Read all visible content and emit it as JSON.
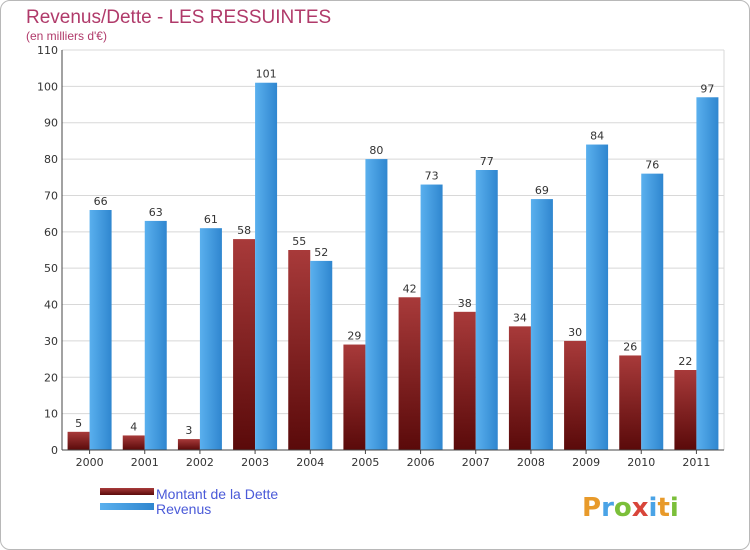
{
  "chart_data": {
    "type": "bar",
    "title": "Revenus/Dette - LES RESSUINTES",
    "subtitle": "(en milliers d'€)",
    "categories": [
      "2000",
      "2001",
      "2002",
      "2003",
      "2004",
      "2005",
      "2006",
      "2007",
      "2008",
      "2009",
      "2010",
      "2011"
    ],
    "series": [
      {
        "name": "Montant de la Dette",
        "color": "#7a1a1a",
        "values": [
          5,
          4,
          3,
          58,
          55,
          29,
          42,
          38,
          34,
          30,
          26,
          22
        ]
      },
      {
        "name": "Revenus",
        "color": "#4aa3e6",
        "values": [
          66,
          63,
          61,
          101,
          52,
          80,
          73,
          77,
          69,
          84,
          76,
          97
        ]
      }
    ],
    "ylim": [
      0,
      110
    ],
    "yticks": [
      0,
      10,
      20,
      30,
      40,
      50,
      60,
      70,
      80,
      90,
      100,
      110
    ],
    "grid": true,
    "legend_position": "bottom-left"
  },
  "branding": {
    "logo_letters": [
      "P",
      "r",
      "o",
      "x",
      "i",
      "t",
      "i"
    ],
    "logo_colors": [
      "#e89a2a",
      "#4aa3e6",
      "#7bbf3a",
      "#d8453a",
      "#4aa3e6",
      "#e89a2a",
      "#7bbf3a"
    ]
  }
}
